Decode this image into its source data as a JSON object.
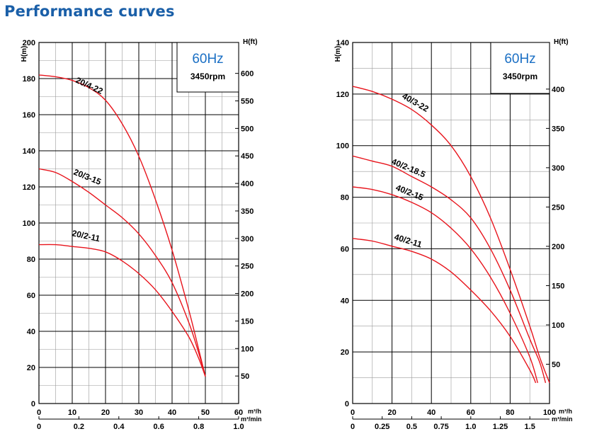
{
  "page": {
    "title": "Performance curves"
  },
  "chart_data": [
    {
      "type": "line",
      "frequency": "60Hz",
      "speed": "3450rpm",
      "xlabel_flow_h": "m³/h",
      "xlabel_flow_min": "m³/min",
      "ylabel_left": "H(m)",
      "ylabel_right": "H(ft)",
      "xlim": [
        0,
        60
      ],
      "ylim": [
        0,
        200
      ],
      "x_ticks": [
        "0",
        "10",
        "20",
        "30",
        "40",
        "50",
        "60"
      ],
      "x2_ticks": [
        "0",
        "0.2",
        "0.4",
        "0.6",
        "0.8",
        "1.0"
      ],
      "y_ticks": [
        "0",
        "20",
        "40",
        "60",
        "80",
        "100",
        "120",
        "140",
        "160",
        "180",
        "200"
      ],
      "y2_ticks": [
        "50",
        "100",
        "150",
        "200",
        "250",
        "300",
        "350",
        "400",
        "450",
        "500",
        "550",
        "600"
      ],
      "y2_ticks_values_m": [
        15.24,
        30.48,
        45.72,
        60.96,
        76.2,
        91.44,
        106.68,
        121.92,
        137.16,
        152.4,
        167.64,
        182.88
      ],
      "grid": true,
      "series": [
        {
          "name": "20/4-22",
          "x": [
            0,
            5,
            10,
            15,
            20,
            25,
            30,
            35,
            40,
            45,
            48,
            50
          ],
          "y": [
            182,
            181,
            179,
            175,
            168,
            155,
            137,
            113,
            85,
            52,
            30,
            15
          ]
        },
        {
          "name": "20/3-15",
          "x": [
            0,
            5,
            10,
            15,
            20,
            25,
            30,
            35,
            40,
            45,
            48,
            50
          ],
          "y": [
            130,
            128,
            123,
            117,
            110,
            103,
            94,
            82,
            67,
            45,
            28,
            15
          ]
        },
        {
          "name": "20/2-11",
          "x": [
            0,
            5,
            10,
            15,
            20,
            25,
            30,
            35,
            40,
            45,
            48,
            50
          ],
          "y": [
            88,
            88,
            87,
            86,
            84,
            79,
            72,
            63,
            51,
            37,
            25,
            15
          ]
        }
      ]
    },
    {
      "type": "line",
      "frequency": "60Hz",
      "speed": "3450rpm",
      "xlabel_flow_h": "m³/h",
      "xlabel_flow_min": "m³/min",
      "ylabel_left": "H(m)",
      "ylabel_right": "H(ft)",
      "xlim": [
        0,
        100
      ],
      "ylim": [
        0,
        140
      ],
      "x_ticks": [
        "0",
        "20",
        "40",
        "60",
        "80",
        "100"
      ],
      "x2_ticks": [
        "0",
        "0.25",
        "0.5",
        "0.75",
        "1.0",
        "1.25",
        "1.5"
      ],
      "y_ticks": [
        "0",
        "20",
        "40",
        "60",
        "80",
        "100",
        "120",
        "140"
      ],
      "y2_ticks": [
        "50",
        "100",
        "150",
        "200",
        "250",
        "300",
        "350",
        "400"
      ],
      "y2_ticks_values_m": [
        15.24,
        30.48,
        45.72,
        60.96,
        76.2,
        91.44,
        106.68,
        121.92
      ],
      "grid": true,
      "series": [
        {
          "name": "40/3-22",
          "x": [
            0,
            10,
            20,
            30,
            40,
            50,
            60,
            70,
            80,
            90,
            95,
            100
          ],
          "y": [
            123,
            121,
            118,
            114,
            108,
            100,
            88,
            72,
            52,
            30,
            18,
            8
          ]
        },
        {
          "name": "40/2-18.5",
          "x": [
            0,
            10,
            20,
            30,
            40,
            50,
            60,
            70,
            80,
            90,
            95,
            98
          ],
          "y": [
            96,
            94,
            92,
            88,
            84,
            79,
            72,
            60,
            44,
            25,
            16,
            8
          ]
        },
        {
          "name": "40/2-15",
          "x": [
            0,
            10,
            20,
            30,
            40,
            50,
            60,
            70,
            80,
            90,
            94
          ],
          "y": [
            84,
            83,
            81,
            78,
            74,
            68,
            60,
            49,
            35,
            18,
            8
          ]
        },
        {
          "name": "40/2-11",
          "x": [
            0,
            10,
            20,
            30,
            40,
            50,
            60,
            70,
            80,
            90,
            93
          ],
          "y": [
            64,
            63,
            61,
            59,
            56,
            51,
            44,
            36,
            26,
            13,
            8
          ]
        }
      ]
    }
  ]
}
